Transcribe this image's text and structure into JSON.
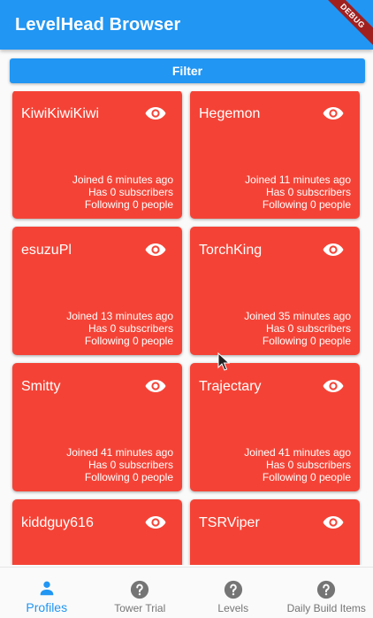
{
  "app": {
    "title": "LevelHead Browser",
    "debug_banner": "DEBUG"
  },
  "filter": {
    "label": "Filter"
  },
  "profiles": [
    {
      "name": "KiwiKiwiKiwi",
      "joined": "Joined 6 minutes ago",
      "subscribers": "Has 0 subscribers",
      "following": "Following 0 people"
    },
    {
      "name": "Hegemon",
      "joined": "Joined 11 minutes ago",
      "subscribers": "Has 0 subscribers",
      "following": "Following 0 people"
    },
    {
      "name": "esuzuPl",
      "joined": "Joined 13 minutes ago",
      "subscribers": "Has 0 subscribers",
      "following": "Following 0 people"
    },
    {
      "name": "TorchKing",
      "joined": "Joined 35 minutes ago",
      "subscribers": "Has 0 subscribers",
      "following": "Following 0 people"
    },
    {
      "name": "Smitty",
      "joined": "Joined 41 minutes ago",
      "subscribers": "Has 0 subscribers",
      "following": "Following 0 people"
    },
    {
      "name": "Trajectary",
      "joined": "Joined 41 minutes ago",
      "subscribers": "Has 0 subscribers",
      "following": "Following 0 people"
    },
    {
      "name": "kiddguy616",
      "joined": "",
      "subscribers": "",
      "following": ""
    },
    {
      "name": "TSRViper",
      "joined": "",
      "subscribers": "",
      "following": ""
    }
  ],
  "nav": [
    {
      "label": "Profiles",
      "icon": "person-icon",
      "active": true
    },
    {
      "label": "Tower Trial",
      "icon": "help-icon",
      "active": false
    },
    {
      "label": "Levels",
      "icon": "help-icon",
      "active": false
    },
    {
      "label": "Daily Build Items",
      "icon": "help-icon",
      "active": false
    }
  ],
  "colors": {
    "primary": "#2196f3",
    "card": "#f44336",
    "nav_inactive": "#757575"
  }
}
